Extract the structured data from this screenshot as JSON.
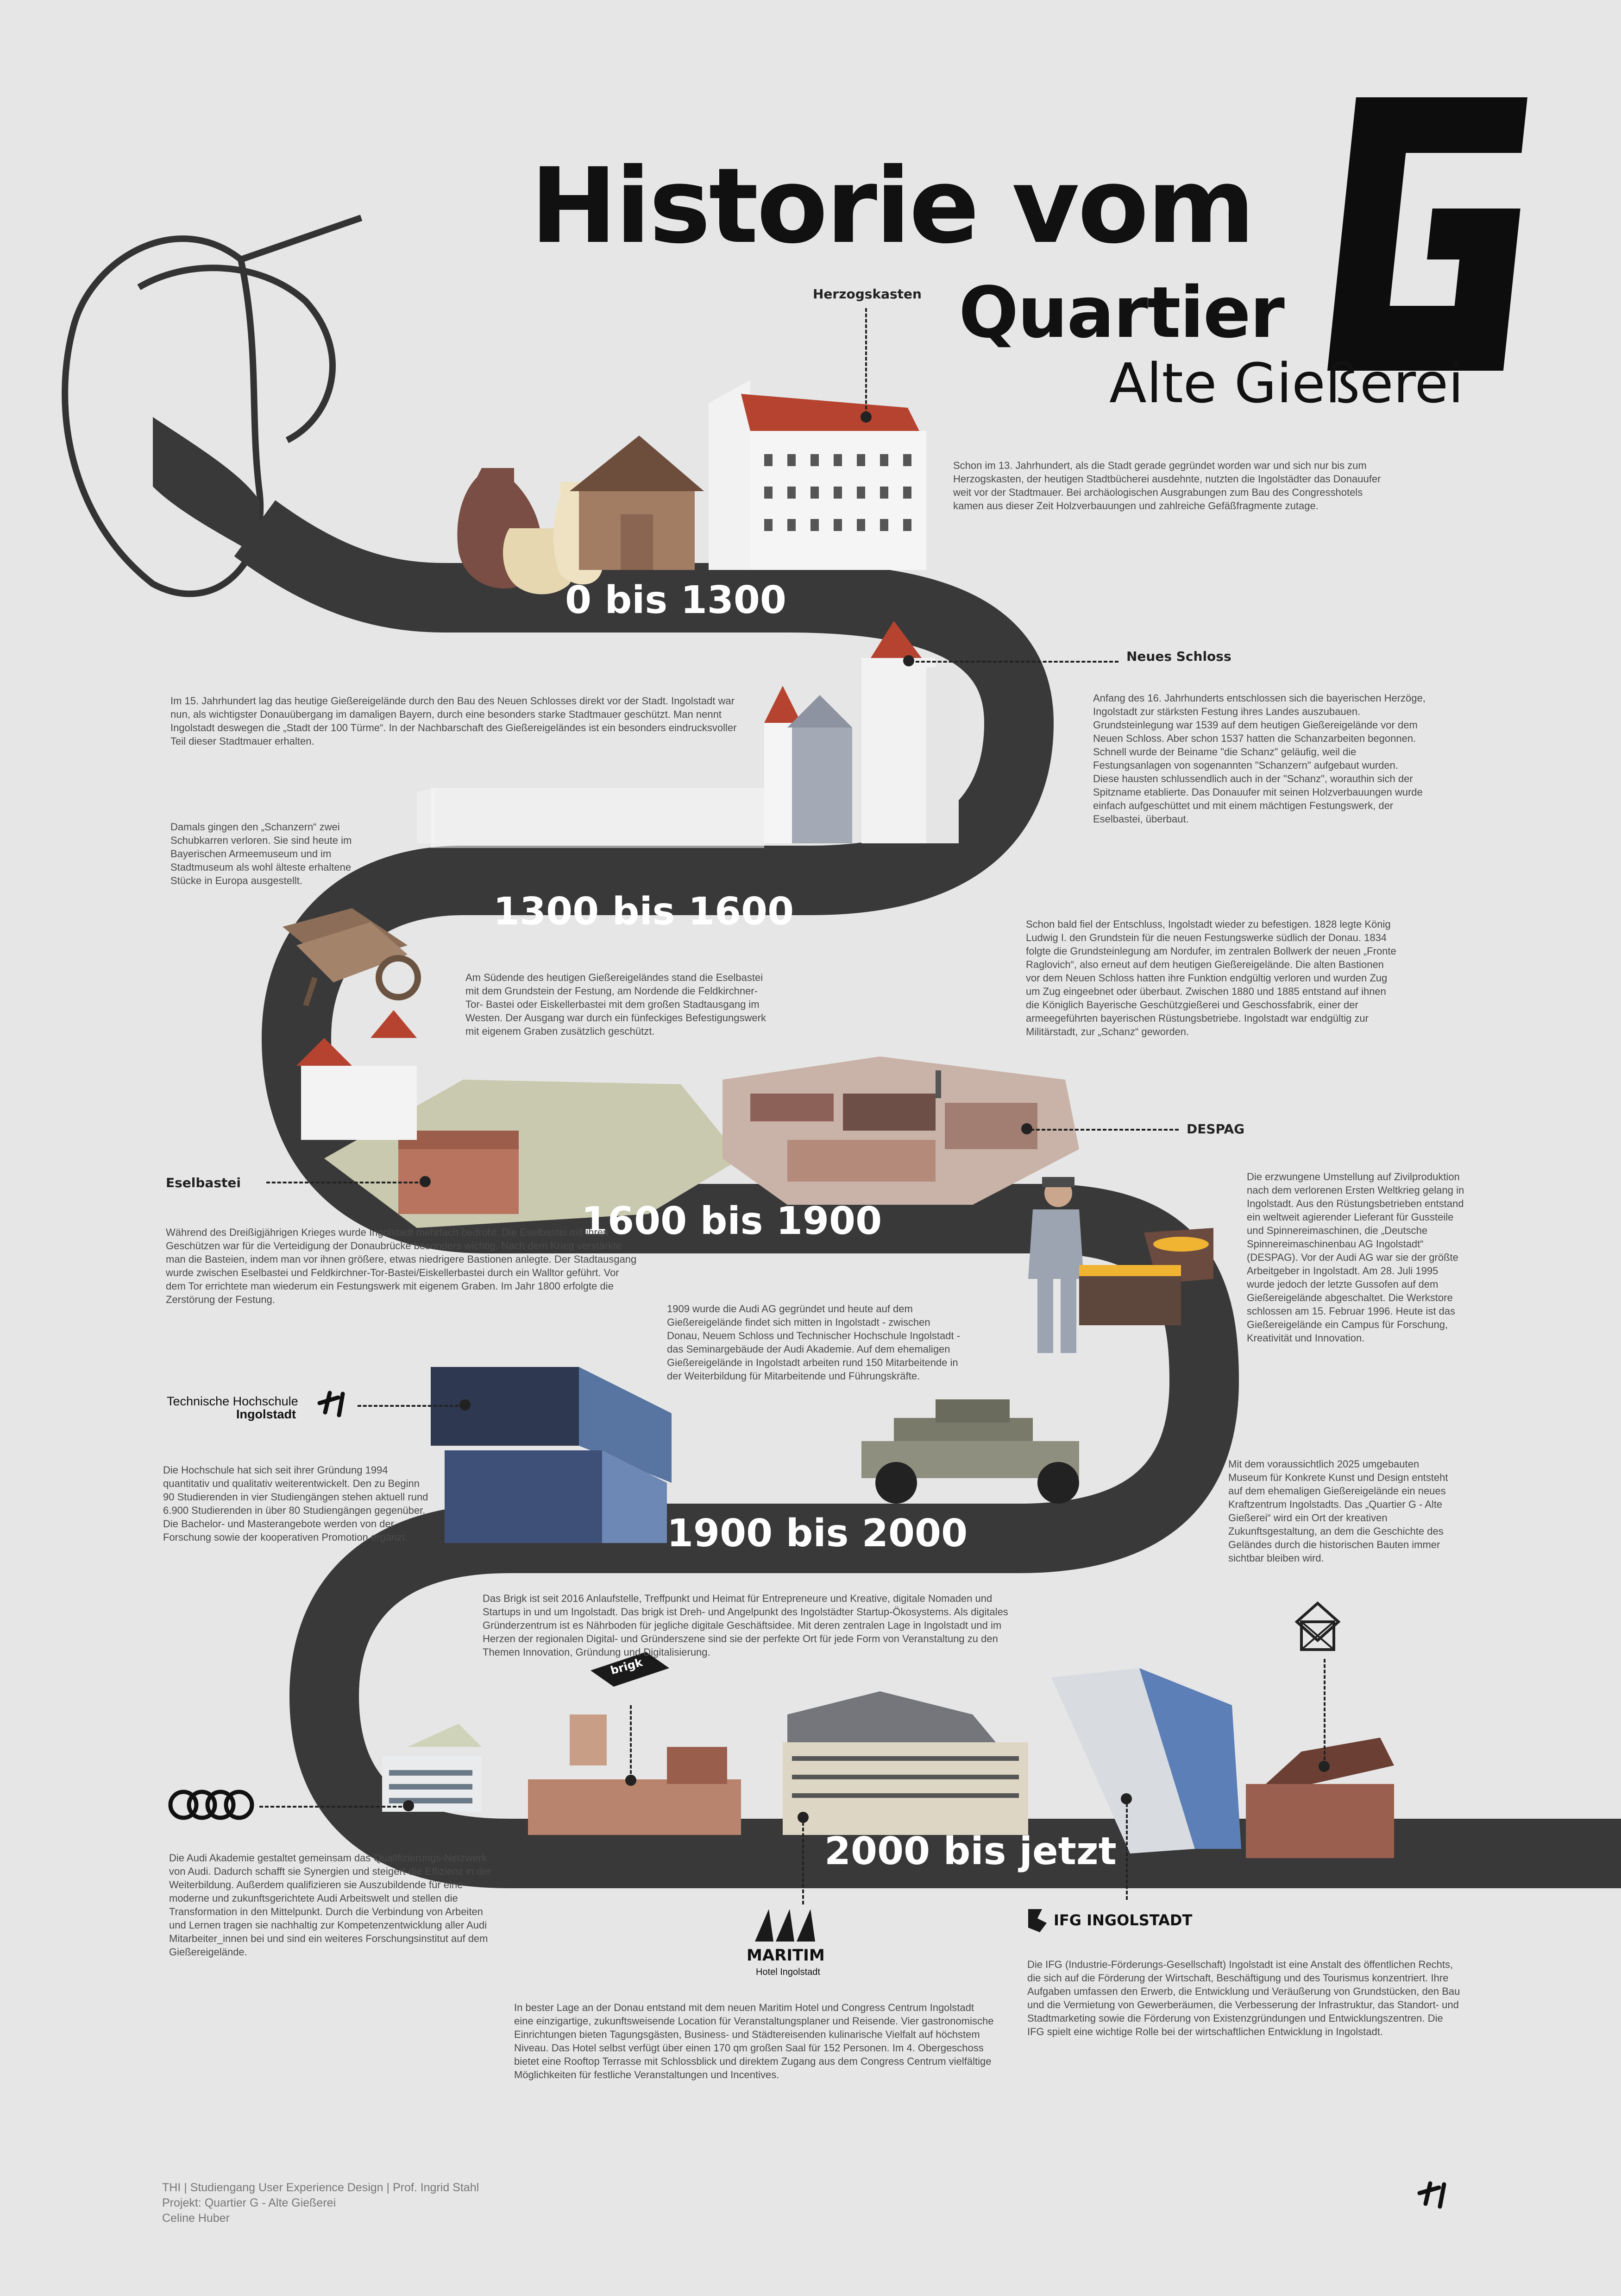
{
  "header": {
    "title_line1": "Historie vom",
    "title_line2": "Quartier",
    "subtitle": "Alte Gießerei"
  },
  "eras": [
    {
      "label": "0 bis 1300"
    },
    {
      "label": "1300 bis 1600"
    },
    {
      "label": "1600 bis 1900"
    },
    {
      "label": "1900 bis 2000"
    },
    {
      "label": "2000 bis jetzt"
    }
  ],
  "landmarks": {
    "herzogskasten": "Herzogskasten",
    "neues_schloss": "Neues Schloss",
    "despag": "DESPAG",
    "eselbastei": "Eselbastei",
    "thi_line1": "Technische Hochschule",
    "thi_line2": "Ingolstadt",
    "brigk": "brigk",
    "maritim": "MARITIM",
    "maritim_sub": "Hotel Ingolstadt",
    "ifg": "IFG INGOLSTADT"
  },
  "texts": {
    "t_0_1300": "Schon im 13. Jahrhundert, als die Stadt gerade gegründet worden war und sich nur bis zum Herzogskasten, der heutigen Stadtbücherei ausdehnte, nutzten die Ingolstädter das Donauufer weit vor der Stadtmauer. Bei archäologischen Ausgrabungen zum Bau des Congresshotels kamen aus dieser Zeit Holzverbauungen und zahlreiche Gefäßfragmente zutage.",
    "t_15jh": "Im 15. Jahrhundert lag das heutige Gießereigelände durch den Bau des Neuen Schlosses direkt vor der Stadt. Ingolstadt war nun, als wichtigster Donauübergang im damaligen Bayern, durch eine besonders starke Stadtmauer geschützt. Man nennt Ingolstadt deswegen die „Stadt der 100 Türme“. In der Nachbarschaft des Gießereigeländes ist ein besonders eindrucksvoller Teil dieser Stadtmauer erhalten.",
    "t_16jh": "Anfang des 16. Jahrhunderts entschlossen sich die bayerischen Herzöge, Ingolstadt zur stärksten Festung ihres Landes auszubauen. Grundsteinlegung war 1539 auf dem heutigen Gießereigelände vor dem Neuen Schloss. Aber schon 1537 hatten die Schanzarbeiten begonnen. Schnell wurde der Beiname \"die Schanz\" geläufig, weil die Festungsanlagen von sogenannten \"Schanzern\" aufgebaut wurden. Diese hausten schlussendlich auch in der \"Schanz\", worauthin sich der Spitzname etablierte. Das Donauufer mit seinen Holzverbauungen wurde einfach aufgeschüttet und mit einem mächtigen Festungswerk, der Eselbastei, überbaut.",
    "t_schanzern": "Damals gingen den „Schanzern“ zwei Schubkarren verloren. Sie sind heute im Bayerischen Armeemuseum und im Stadtmuseum als wohl älteste erhaltene Stücke in Europa ausgestellt.",
    "t_suedende": "Am Südende des heutigen Gießereigeländes stand die Eselbastei mit dem Grundstein der Festung, am Nordende die Feldkirchner-Tor- Bastei oder Eiskellerbastei mit dem großen Stadtausgang im Westen. Der Ausgang war durch ein fünfeckiges Befestigungswerk mit eigenem Graben zusätzlich geschützt.",
    "t_1828": "Schon bald fiel der Entschluss, Ingolstadt wieder zu befestigen. 1828 legte König Ludwig I. den Grundstein für die neuen Festungswerke südlich der Donau. 1834 folgte die Grundsteinlegung am Nordufer, im zentralen Bollwerk der neuen „Fronte Raglovich“, also erneut auf dem heutigen Gießereigelände. Die alten Bastionen vor dem Neuen Schloss hatten ihre Funktion endgültig verloren und wurden Zug um Zug eingeebnet oder überbaut. Zwischen 1880 und 1885 entstand auf ihnen die Königlich Bayerische Geschützgießerei und Geschossfabrik, einer der armeegeführten bayerischen Rüstungsbetriebe. Ingolstadt war endgültig zur Militärstadt, zur „Schanz“ geworden.",
    "t_30jahre": "Während des Dreißigjährigen Krieges wurde Ingolstadt mehrfach bedroht. Die Eselbastei mit ihren Geschützen war für die Verteidigung der Donaubrücke besonders wichtig. Nach dem Krieg verstärkte man die Basteien, indem man vor ihnen größere, etwas niedrigere Bastionen anlegte. Der Stadtausgang wurde zwischen Eselbastei und Feldkirchner-Tor-Bastei/Eiskellerbastei durch ein Walltor geführt. Vor dem Tor errichtete man wiederum ein Festungswerk mit eigenem Graben. Im Jahr 1800 erfolgte die Zerstörung der Festung.",
    "t_despag": "Die erzwungene Umstellung auf Zivilproduktion nach dem verlorenen Ersten Weltkrieg gelang in Ingolstadt. Aus den Rüstungsbetrieben entstand ein weltweit agierender Lieferant für Gussteile und Spinnereimaschinen, die „Deutsche Spinnereimaschinenbau AG Ingolstadt“ (DESPAG). Vor der Audi AG war sie der größte Arbeitgeber in Ingolstadt. Am 28. Juli 1995 wurde jedoch der letzte Gussofen auf dem Gießereigelände abgeschaltet. Die Werkstore schlossen am 15. Februar 1996. Heute ist das Gießereigelände ein Campus für Forschung, Kreativität und Innovation.",
    "t_1909": "1909 wurde die Audi AG gegründet und heute auf dem Gießereigelände findet sich mitten in Ingolstadt - zwischen Donau, Neuem Schloss und Technischer Hochschule Ingolstadt - das Seminargebäude der Audi Akademie. Auf dem ehemaligen Gießereigelände in Ingolstadt arbeiten rund 150 Mitarbeitende in der Weiterbildung für Mitarbeitende und Führungskräfte.",
    "t_thi": "Die Hochschule hat sich seit ihrer Gründung 1994 quantitativ und qualitativ weiterentwickelt. Den zu Beginn 90 Studierenden in vier Studiengängen stehen aktuell rund 6.900 Studierenden in über 80 Studiengängen gegenüber. Die Bachelor- und Masterangebote werden von der Forschung sowie der kooperativen Promotion ergänzt.",
    "t_2025": "Mit dem voraussichtlich 2025 umgebauten Museum für Konkrete Kunst und Design entsteht auf dem ehemaligen Gießereigelände ein neues Kraftzentrum Ingolstadts. Das „Quartier G - Alte Gießerei“ wird ein Ort der kreativen Zukunftsgestaltung, an dem die Geschichte des Geländes durch die historischen Bauten immer sichtbar bleiben wird.",
    "t_brigk": "Das Brigk ist seit 2016 Anlaufstelle, Treffpunkt und Heimat für Entrepreneure und Kreative, digitale Nomaden und Startups in und um Ingolstadt. Das brigk ist Dreh- und Angelpunkt des Ingolstädter Startup-Ökosystems. Als digitales Gründerzentrum ist es Nährboden für jegliche digitale Geschäftsidee. Mit deren zentralen Lage in Ingolstadt und im Herzen der regionalen Digital- und Gründerszene sind sie der perfekte Ort für jede Form von Veranstaltung zu den Themen Innovation, Gründung und Digitalisierung.",
    "t_audi": "Die Audi Akademie gestaltet gemeinsam das Qualifizierungs-Netzwerk von Audi. Dadurch schafft sie Synergien und steigert die Effizienz in der Weiterbildung. Außerdem qualifizieren sie Auszubildende für eine moderne und zukunftsgerichtete Audi Arbeitswelt und stellen die Transformation in den Mittelpunkt. Durch die Verbindung von Arbeiten und Lernen tragen sie nachhaltig zur Kompetenzentwicklung aller Audi Mitarbeiter_innen bei und sind ein weiteres Forschungsinstitut auf dem Gießereigelände.",
    "t_maritim": "In bester Lage an der Donau entstand mit dem neuen Maritim Hotel und Congress Centrum Ingolstadt eine einzigartige, zukunftsweisende Location für Veranstaltungsplaner und Reisende. Vier gastronomische Einrichtungen bieten Tagungsgästen, Business- und Städtereisenden kulinarische Vielfalt auf höchstem Niveau. Das Hotel selbst verfügt über einen 170 qm großen Saal für 152 Personen. Im 4. Obergeschoss bietet eine Rooftop Terrasse mit Schlossblick und direktem Zugang aus dem Congress Centrum vielfältige Möglichkeiten für festliche Veranstaltungen und Incentives.",
    "t_ifg": "Die IFG (Industrie-Förderungs-Gesellschaft) Ingolstadt ist eine Anstalt des öffentlichen Rechts, die sich auf die Förderung der Wirtschaft, Beschäftigung und des Tourismus konzentriert. Ihre Aufgaben umfassen den Erwerb, die Entwicklung und Veräußerung von Grundstücken, den Bau und die Vermietung von Gewerberäumen, die Verbesserung der Infrastruktur, das Standort- und Stadtmarketing sowie die Förderung von Existenzgründungen und Entwicklungszentren. Die IFG spielt eine wichtige Rolle bei der wirtschaftlichen Entwicklung in Ingolstadt."
  },
  "footer": {
    "line1": "THI  |  Studiengang User Experience Design  |  Prof. Ingrid Stahl",
    "line2": "Projekt: Quartier G - Alte Gießerei",
    "line3": "Celine Huber"
  },
  "colors": {
    "background": "#e6e6e6",
    "road": "#3a3939",
    "ink": "#111111",
    "brick": "#a0614c",
    "roof": "#b5432f"
  },
  "icons": [
    "g-logo-icon",
    "ladle-icon",
    "amphora-icon",
    "castle-icon",
    "wheelbarrow-icon",
    "factory-icon",
    "worker-icon",
    "car-icon",
    "thi-building-icon",
    "audi-rings-icon",
    "brigk-icon",
    "maritim-logo-icon",
    "ifg-logo-icon",
    "thi-logo-icon"
  ]
}
